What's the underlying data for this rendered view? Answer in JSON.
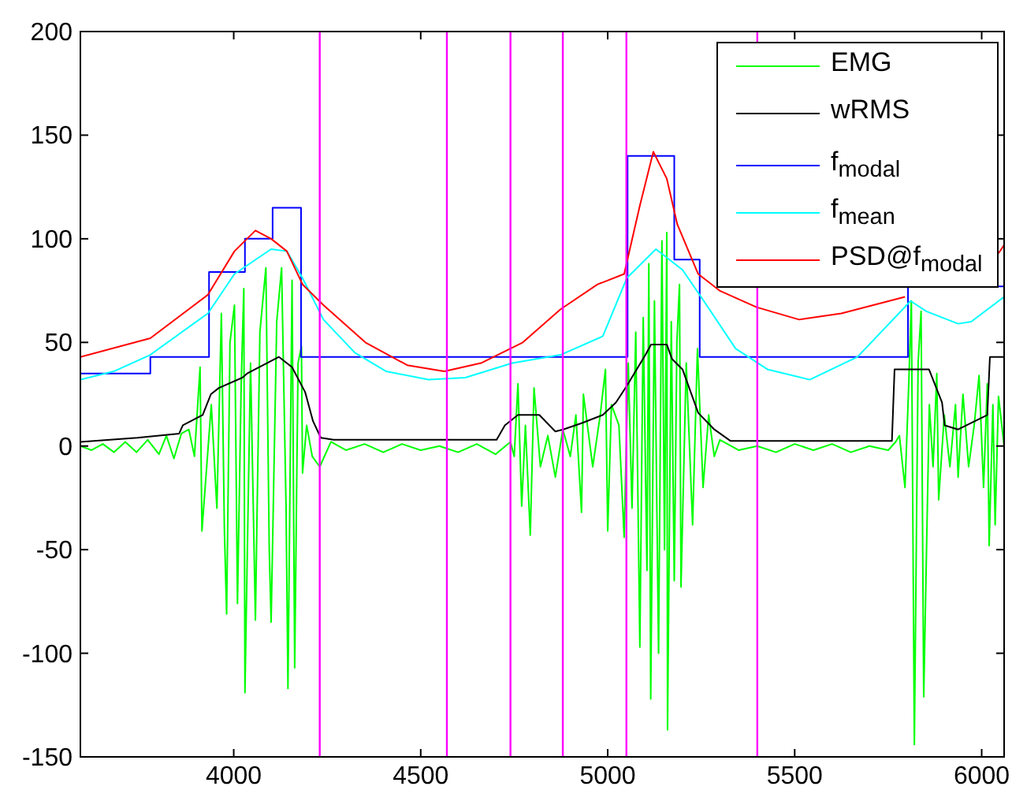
{
  "chart_data": {
    "type": "line",
    "xlim": [
      3590,
      6060
    ],
    "ylim": [
      -150,
      200
    ],
    "xticks": [
      4000,
      4500,
      5000,
      5500,
      6000
    ],
    "yticks": [
      -150,
      -100,
      -50,
      0,
      50,
      100,
      150,
      200
    ],
    "grid": false,
    "legend": "top right",
    "series": [
      {
        "name": "EMG",
        "color": "#00ff00",
        "x": [
          3590,
          3620,
          3650,
          3680,
          3710,
          3740,
          3770,
          3800,
          3820,
          3840,
          3860,
          3880,
          3895,
          3910,
          3915,
          3940,
          3955,
          3967,
          3975,
          3981,
          3990,
          4002,
          4010,
          4020,
          4027,
          4030,
          4045,
          4058,
          4070,
          4086,
          4095,
          4100,
          4115,
          4128,
          4140,
          4145,
          4156,
          4163,
          4172,
          4181,
          4184,
          4195,
          4210,
          4230,
          4260,
          4300,
          4350,
          4400,
          4450,
          4500,
          4550,
          4600,
          4650,
          4700,
          4740,
          4750,
          4760,
          4770,
          4780,
          4793,
          4803,
          4820,
          4840,
          4860,
          4880,
          4900,
          4915,
          4930,
          4935,
          4960,
          4980,
          4994,
          5000,
          5010,
          5030,
          5044,
          5055,
          5065,
          5075,
          5086,
          5095,
          5105,
          5110,
          5115,
          5125,
          5136,
          5145,
          5152,
          5158,
          5160,
          5170,
          5178,
          5185,
          5192,
          5196,
          5210,
          5227,
          5240,
          5255,
          5270,
          5285,
          5300,
          5350,
          5400,
          5450,
          5500,
          5550,
          5600,
          5650,
          5700,
          5750,
          5770,
          5780,
          5795,
          5805,
          5812,
          5820,
          5830,
          5838,
          5845,
          5860,
          5870,
          5880,
          5885,
          5900,
          5915,
          5930,
          5937,
          5950,
          5965,
          5980,
          5993,
          6005,
          6015,
          6020,
          6030,
          6036,
          6045,
          6060
        ],
        "values": [
          0,
          -2,
          1,
          -3,
          2,
          -3,
          3,
          -4,
          5,
          -6,
          6,
          8,
          -5,
          38,
          -41,
          20,
          -30,
          64,
          -40,
          -81,
          50,
          68,
          -76,
          30,
          76,
          -119,
          40,
          -84,
          55,
          86,
          -50,
          -85,
          60,
          86,
          -30,
          -117,
          80,
          -107,
          40,
          48,
          -13,
          10,
          -5,
          -10,
          2,
          -2,
          1,
          -3,
          1,
          -2,
          0,
          -3,
          1,
          -4,
          2,
          -5,
          30,
          -29,
          10,
          -43,
          28,
          -10,
          5,
          -15,
          8,
          -5,
          15,
          -32,
          25,
          -10,
          15,
          37,
          -41,
          20,
          10,
          -44,
          40,
          -30,
          55,
          -97,
          62,
          -60,
          88,
          -122,
          70,
          -100,
          99,
          -50,
          103,
          -137,
          60,
          -65,
          50,
          78,
          -68,
          40,
          -38,
          47,
          -20,
          15,
          -5,
          3,
          -2,
          0,
          -3,
          1,
          -2,
          1,
          -3,
          0,
          -2,
          2,
          5,
          -20,
          30,
          70,
          -144,
          40,
          65,
          -121,
          20,
          -10,
          35,
          -26,
          15,
          -10,
          20,
          -15,
          25,
          -10,
          10,
          34,
          -20,
          30,
          -48,
          20,
          -38,
          24,
          0
        ]
      },
      {
        "name": "wRMS",
        "color": "#000000",
        "x": [
          3590,
          3742,
          3854,
          3864,
          3917,
          3939,
          3960,
          4023,
          4036,
          4121,
          4156,
          4191,
          4212,
          4233,
          4267,
          4703,
          4725,
          4760,
          4817,
          4860,
          4881,
          4930,
          4987,
          5022,
          5051,
          5101,
          5116,
          5158,
          5172,
          5200,
          5242,
          5285,
          5328,
          5760,
          5767,
          5795,
          5859,
          5894,
          5901,
          5937,
          6015,
          6022,
          6060
        ],
        "values": [
          2,
          4,
          6,
          10,
          15,
          25,
          28,
          33,
          35,
          43,
          38,
          26,
          12,
          4,
          3,
          3,
          10,
          15,
          15,
          7,
          8,
          11,
          15,
          21,
          29,
          44,
          49,
          49,
          42,
          37,
          16,
          8,
          2.5,
          2.5,
          37,
          37,
          37,
          21,
          10,
          8,
          15,
          43,
          43
        ]
      },
      {
        "name": "f$_{modal}$",
        "color": "#0000ff",
        "type": "step",
        "x": [
          3590,
          3777,
          3934,
          4030,
          4104,
          4180,
          5053,
          5178,
          5246,
          5803,
          6060
        ],
        "values": [
          35,
          43,
          84,
          100,
          115,
          43,
          140,
          90,
          43,
          77,
          77
        ]
      },
      {
        "name": "f$_{mean}$",
        "color": "#00ffff",
        "x": [
          3590,
          3679,
          3777,
          3931,
          4002,
          4100,
          4142,
          4184,
          4240,
          4324,
          4408,
          4521,
          4619,
          4745,
          4874,
          4987,
          5051,
          5129,
          5200,
          5257,
          5342,
          5427,
          5540,
          5668,
          5810,
          5852,
          5937,
          5972,
          6060
        ],
        "values": [
          32,
          36,
          44,
          64,
          83,
          95,
          94,
          81,
          61,
          45,
          36,
          32,
          33,
          40,
          44,
          53,
          81,
          95,
          85,
          70,
          47,
          37,
          32,
          43,
          70,
          65,
          59,
          60,
          72
        ]
      },
      {
        "name": "PSD@f$_{modal}$",
        "color": "#ff0000",
        "x": [
          3590,
          3777,
          3931,
          4002,
          4058,
          4100,
          4142,
          4184,
          4240,
          4352,
          4464,
          4563,
          4661,
          4773,
          4874,
          4973,
          5044,
          5086,
          5122,
          5158,
          5186,
          5242,
          5299,
          5398,
          5512,
          5625,
          5795,
          5830,
          6045,
          6060
        ],
        "values": [
          43,
          52,
          73,
          94,
          104,
          100,
          94,
          78,
          68,
          50,
          39,
          36,
          40,
          50,
          66,
          78,
          83,
          116,
          142,
          129,
          107,
          83,
          75,
          67,
          61,
          64,
          72,
          null,
          93,
          97
        ]
      }
    ],
    "ref_lines": [
      {
        "axis": "x",
        "value": 4230,
        "color": "#ff00ff"
      },
      {
        "axis": "x",
        "value": 4570,
        "color": "#ff00ff"
      },
      {
        "axis": "x",
        "value": 4740,
        "color": "#ff00ff"
      },
      {
        "axis": "x",
        "value": 4880,
        "color": "#ff00ff"
      },
      {
        "axis": "x",
        "value": 5050,
        "color": "#ff00ff"
      },
      {
        "axis": "x",
        "value": 5400,
        "color": "#ff00ff"
      }
    ]
  }
}
